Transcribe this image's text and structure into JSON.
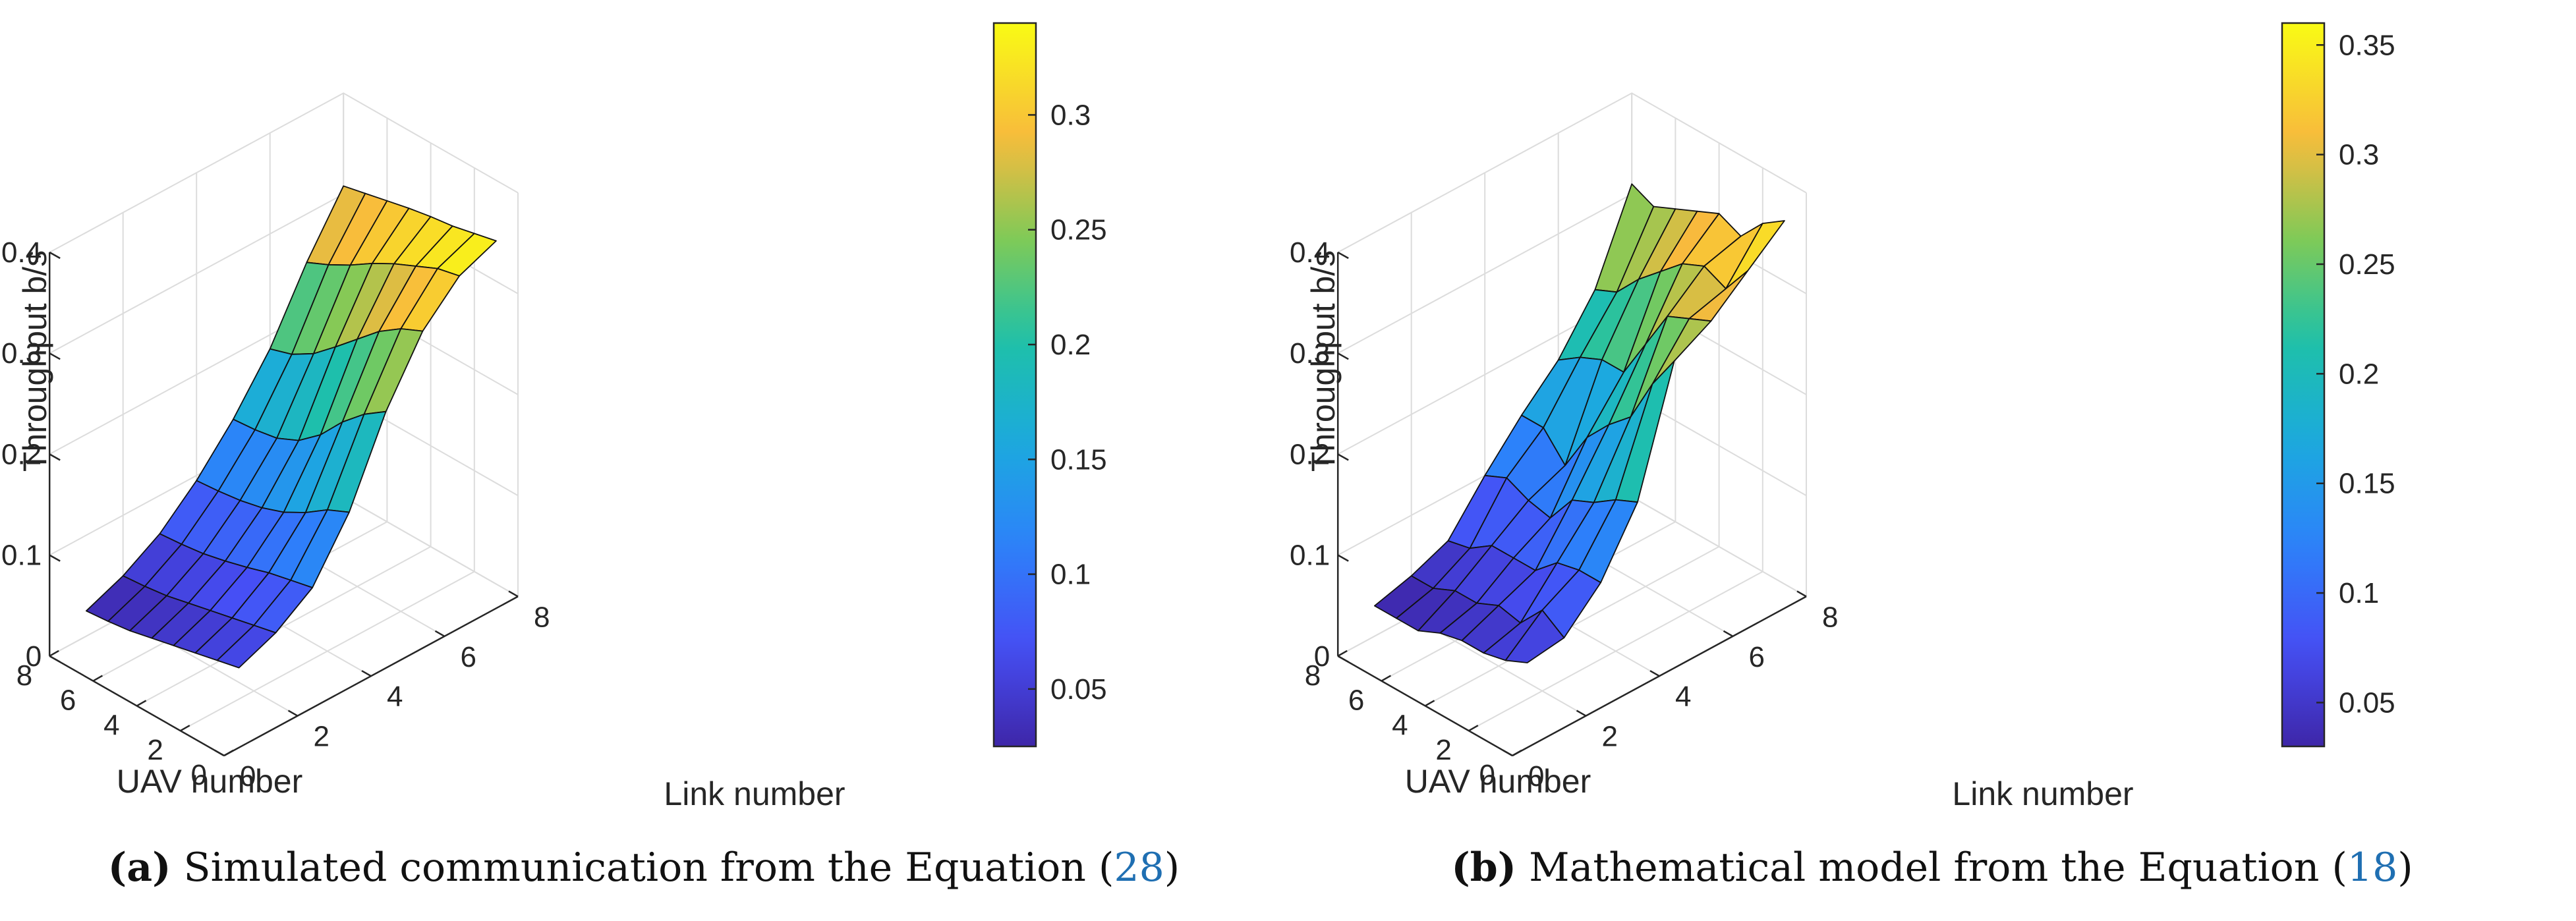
{
  "charts": [
    {
      "id": "a",
      "caption": {
        "paren_open": "(",
        "label": "a",
        "paren_close": ")",
        "text": " Simulated communication from the Equation (",
        "ref": "28",
        "end": ")"
      },
      "chart_data": {
        "type": "surface",
        "xlabel": "Link number",
        "ylabel": "UAV number",
        "zlabel": "Throughput b/s",
        "xlim": [
          0,
          8
        ],
        "ylim": [
          0,
          8
        ],
        "zlim": [
          0,
          0.4
        ],
        "x_ticks": [
          "0",
          "2",
          "4",
          "6",
          "8"
        ],
        "y_ticks": [
          "0",
          "2",
          "4",
          "6",
          "8"
        ],
        "z_ticks": [
          "0",
          "0.1",
          "0.2",
          "0.3",
          "0.4"
        ],
        "x": [
          1,
          2,
          3,
          4,
          5,
          6,
          7,
          8
        ],
        "y": [
          1,
          2,
          3,
          4,
          5,
          6,
          7,
          8
        ],
        "z": [
          [
            0.055,
            0.07,
            0.095,
            0.15,
            0.23,
            0.29,
            0.325,
            0.34
          ],
          [
            0.05,
            0.065,
            0.09,
            0.14,
            0.215,
            0.28,
            0.32,
            0.335
          ],
          [
            0.045,
            0.06,
            0.085,
            0.125,
            0.195,
            0.265,
            0.31,
            0.33
          ],
          [
            0.04,
            0.055,
            0.078,
            0.113,
            0.17,
            0.245,
            0.3,
            0.327
          ],
          [
            0.035,
            0.05,
            0.072,
            0.105,
            0.152,
            0.225,
            0.288,
            0.323
          ],
          [
            0.03,
            0.045,
            0.067,
            0.1,
            0.142,
            0.206,
            0.274,
            0.318
          ],
          [
            0.027,
            0.042,
            0.064,
            0.097,
            0.138,
            0.193,
            0.262,
            0.313
          ],
          [
            0.025,
            0.04,
            0.062,
            0.095,
            0.136,
            0.186,
            0.252,
            0.308
          ]
        ],
        "colorbar": {
          "min": 0.025,
          "max": 0.34,
          "ticks": [
            "0.05",
            "0.1",
            "0.15",
            "0.2",
            "0.25",
            "0.3"
          ]
        }
      }
    },
    {
      "id": "b",
      "caption": {
        "paren_open": "(",
        "label": "b",
        "paren_close": ")",
        "text": " Mathematical model from the Equation (",
        "ref": "18",
        "end": ")"
      },
      "chart_data": {
        "type": "surface",
        "xlabel": "Link number",
        "ylabel": "UAV number",
        "zlabel": "Throughput b/s",
        "xlim": [
          0,
          8
        ],
        "ylim": [
          0,
          8
        ],
        "zlim": [
          0,
          0.4
        ],
        "x_ticks": [
          "0",
          "2",
          "4",
          "6",
          "8"
        ],
        "y_ticks": [
          "0",
          "2",
          "4",
          "6",
          "8"
        ],
        "z_ticks": [
          "0",
          "0.1",
          "0.2",
          "0.3",
          "0.4"
        ],
        "x": [
          1,
          2,
          3,
          4,
          5,
          6,
          7,
          8
        ],
        "y": [
          1,
          2,
          3,
          4,
          5,
          6,
          7,
          8
        ],
        "z": [
          [
            0.06,
            0.065,
            0.1,
            0.16,
            0.28,
            0.3,
            0.33,
            0.36
          ],
          [
            0.05,
            0.08,
            0.1,
            0.15,
            0.245,
            0.29,
            0.3,
            0.345
          ],
          [
            0.045,
            0.055,
            0.095,
            0.135,
            0.2,
            0.28,
            0.31,
            0.32
          ],
          [
            0.045,
            0.06,
            0.075,
            0.125,
            0.18,
            0.24,
            0.3,
            0.33
          ],
          [
            0.04,
            0.05,
            0.075,
            0.095,
            0.155,
            0.2,
            0.28,
            0.32
          ],
          [
            0.03,
            0.05,
            0.075,
            0.1,
            0.115,
            0.2,
            0.26,
            0.31
          ],
          [
            0.03,
            0.04,
            0.06,
            0.11,
            0.14,
            0.19,
            0.235,
            0.3
          ],
          [
            0.03,
            0.04,
            0.055,
            0.1,
            0.14,
            0.175,
            0.225,
            0.31
          ]
        ],
        "colorbar": {
          "min": 0.03,
          "max": 0.36,
          "ticks": [
            "0.05",
            "0.1",
            "0.15",
            "0.2",
            "0.25",
            "0.3",
            "0.35"
          ]
        }
      }
    }
  ]
}
